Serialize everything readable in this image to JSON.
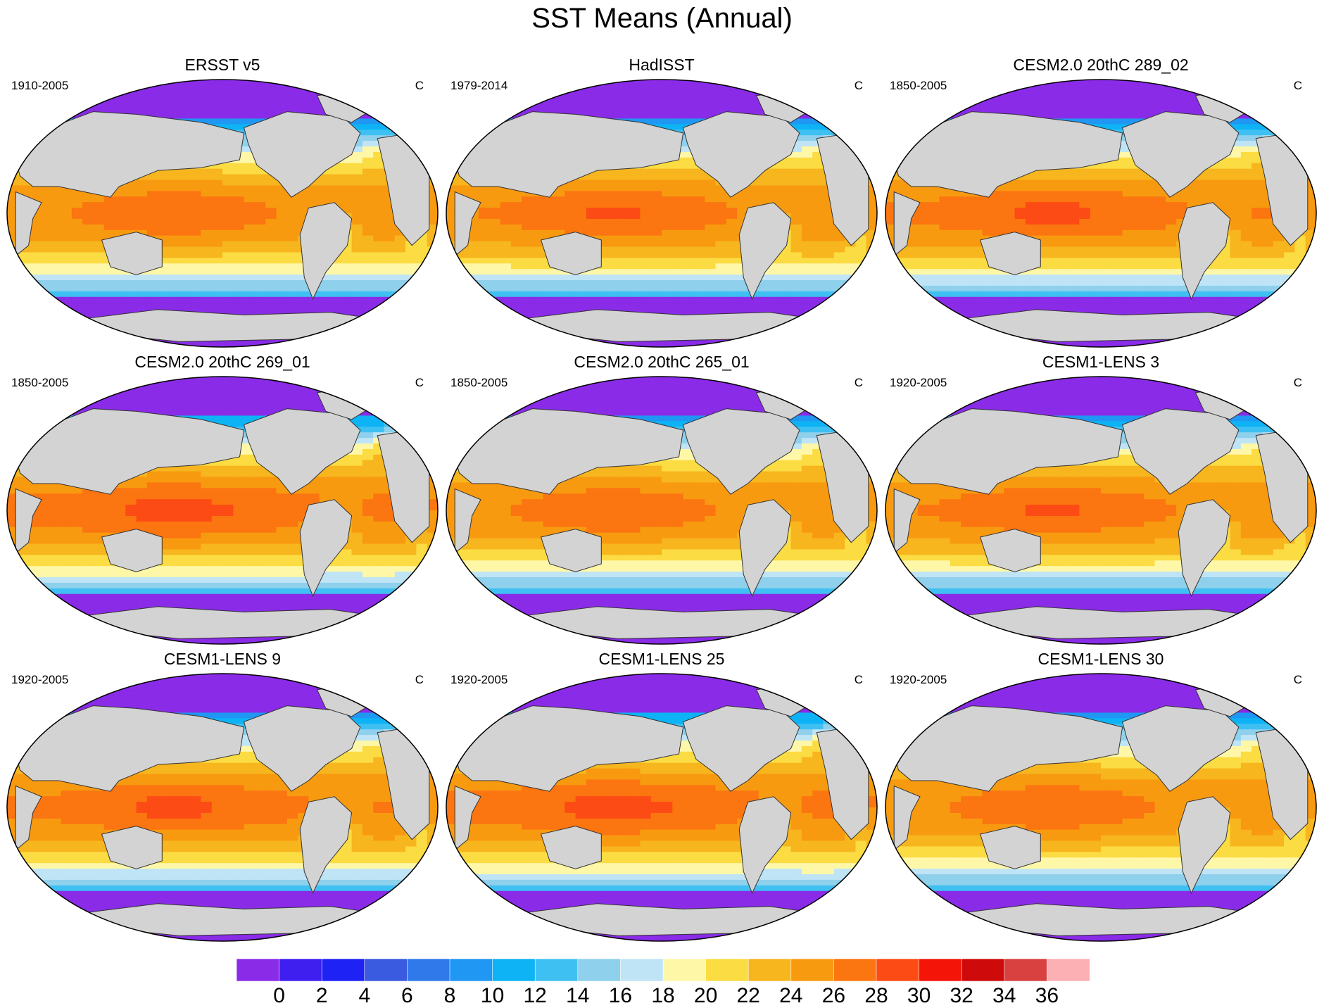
{
  "title": "SST Means (Annual)",
  "panels": [
    {
      "title": "ERSST v5",
      "period": "1910-2005",
      "units": "C"
    },
    {
      "title": "HadISST",
      "period": "1979-2014",
      "units": "C"
    },
    {
      "title": "CESM2.0 20thC 289_02",
      "period": "1850-2005",
      "units": "C"
    },
    {
      "title": "CESM2.0 20thC 269_01",
      "period": "1850-2005",
      "units": "C"
    },
    {
      "title": "CESM2.0 20thC 265_01",
      "period": "1850-2005",
      "units": "C"
    },
    {
      "title": "CESM1-LENS 3",
      "period": "1920-2005",
      "units": "C"
    },
    {
      "title": "CESM1-LENS 9",
      "period": "1920-2005",
      "units": "C"
    },
    {
      "title": "CESM1-LENS 25",
      "period": "1920-2005",
      "units": "C"
    },
    {
      "title": "CESM1-LENS 30",
      "period": "1920-2005",
      "units": "C"
    }
  ],
  "colorbar": {
    "labels": [
      "0",
      "2",
      "4",
      "6",
      "8",
      "10",
      "12",
      "14",
      "16",
      "18",
      "20",
      "22",
      "24",
      "26",
      "28",
      "30",
      "32",
      "34",
      "36"
    ],
    "colors": [
      "#8a2be8",
      "#3f1fef",
      "#1e22f5",
      "#3a5ae0",
      "#2f79ea",
      "#1f97f3",
      "#0db3f5",
      "#3fc0f2",
      "#8fd0ec",
      "#bfe4f6",
      "#fff7a8",
      "#fbdc42",
      "#f7b51e",
      "#f89a10",
      "#fb7510",
      "#fc4b14",
      "#f41408",
      "#cf0a0a",
      "#d94040",
      "#fdb0b4"
    ]
  },
  "land_color": "#d3d3d3"
}
